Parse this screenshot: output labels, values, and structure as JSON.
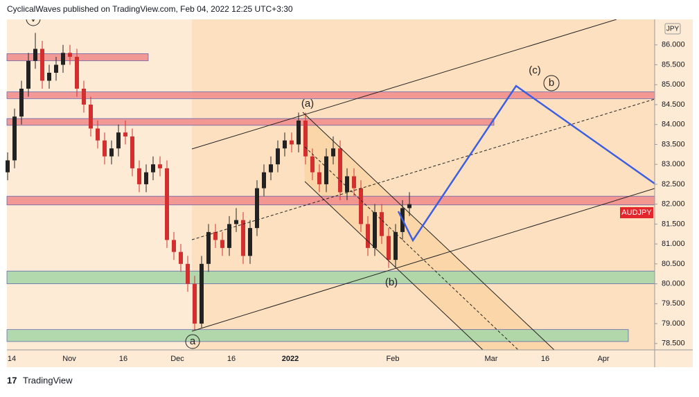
{
  "header": {
    "text": "CyclicalWaves published on TradingView.com, Feb 04, 2022 12:25 UTC+3:30"
  },
  "footer": {
    "brand": "TradingView"
  },
  "chart_data": {
    "type": "candlestick",
    "symbol": "AUDJPY",
    "currency": "JPY",
    "up_color": "#222222",
    "down_color": "#d32f2f",
    "ylim": [
      78.34,
      86.64
    ],
    "yticks": [
      {
        "value": 78.5,
        "label": "78.500"
      },
      {
        "value": 79,
        "label": "79.000"
      },
      {
        "value": 79.5,
        "label": "79.500"
      },
      {
        "value": 80,
        "label": "80.000"
      },
      {
        "value": 80.5,
        "label": "80.500"
      },
      {
        "value": 81,
        "label": "81.000"
      },
      {
        "value": 81.5,
        "label": "81.500"
      },
      {
        "value": 82,
        "label": "82.000"
      },
      {
        "value": 82.5,
        "label": "82.500"
      },
      {
        "value": 83,
        "label": "83.000"
      },
      {
        "value": 83.5,
        "label": "83.500"
      },
      {
        "value": 84,
        "label": "84.000"
      },
      {
        "value": 84.5,
        "label": "84.500"
      },
      {
        "value": 85,
        "label": "85.000"
      },
      {
        "value": 85.5,
        "label": "85.500"
      },
      {
        "value": 86,
        "label": "86.000"
      }
    ],
    "xtick_labels": [
      "14",
      "Nov",
      "16",
      "Dec",
      "16",
      "2022",
      "Feb",
      "Mar",
      "16",
      "Apr"
    ],
    "open": [
      82.8,
      83.1,
      84.2,
      84.9,
      85.6,
      85.9,
      85.1,
      85.3,
      85.5,
      85.8,
      85.7,
      84.9,
      84.5,
      83.9,
      83.6,
      83.2,
      83.4,
      83.8,
      83.7,
      82.9,
      82.5,
      82.8,
      83.0,
      82.9,
      81.1,
      80.8,
      80.5,
      80.0,
      79.0,
      80.5,
      81.3,
      81.1,
      80.9,
      81.5,
      81.6,
      80.7,
      81.4,
      82.4,
      82.8,
      83.0,
      83.4,
      83.6,
      83.5,
      84.1,
      83.2,
      82.8,
      82.5,
      83.2,
      83.4,
      82.3,
      82.7,
      82.4,
      81.5,
      80.9,
      81.8,
      81.2,
      80.6,
      81.3,
      81.9
    ],
    "high": [
      83.3,
      84.4,
      85.1,
      85.8,
      86.3,
      86.1,
      85.5,
      85.7,
      86.0,
      86.0,
      85.9,
      85.1,
      84.7,
      84.1,
      83.8,
      83.6,
      84.0,
      84.1,
      83.9,
      83.1,
      83.0,
      83.2,
      83.2,
      83.1,
      81.3,
      81.0,
      80.7,
      80.2,
      80.7,
      81.5,
      81.5,
      81.3,
      81.7,
      81.9,
      81.8,
      81.6,
      82.6,
      83.0,
      83.2,
      83.6,
      83.8,
      83.8,
      84.3,
      84.3,
      83.4,
      83.0,
      83.4,
      83.7,
      83.6,
      82.9,
      82.9,
      82.6,
      81.7,
      82.0,
      82.0,
      81.4,
      81.5,
      82.1,
      82.3
    ],
    "low": [
      82.6,
      82.9,
      84.0,
      84.7,
      85.4,
      84.9,
      84.9,
      85.1,
      85.3,
      85.5,
      84.7,
      84.3,
      83.7,
      83.4,
      83.0,
      83.0,
      83.2,
      83.5,
      82.7,
      82.3,
      82.3,
      82.6,
      82.7,
      80.9,
      80.6,
      80.3,
      79.8,
      78.85,
      78.9,
      80.3,
      80.9,
      80.7,
      80.7,
      81.3,
      80.5,
      80.5,
      81.2,
      82.2,
      82.6,
      82.8,
      83.2,
      83.3,
      83.3,
      83.0,
      82.6,
      82.3,
      82.3,
      83.0,
      82.1,
      82.1,
      82.2,
      81.3,
      80.7,
      80.7,
      81.0,
      80.4,
      80.4,
      81.1,
      81.7
    ],
    "close": [
      83.1,
      84.2,
      84.9,
      85.6,
      85.9,
      85.1,
      85.3,
      85.5,
      85.8,
      85.7,
      84.9,
      84.5,
      83.9,
      83.6,
      83.2,
      83.4,
      83.8,
      83.7,
      82.9,
      82.5,
      82.8,
      83.0,
      82.9,
      81.1,
      80.8,
      80.5,
      80.0,
      79.0,
      80.5,
      81.3,
      81.1,
      80.9,
      81.5,
      81.6,
      80.7,
      81.4,
      82.4,
      82.8,
      83.0,
      83.4,
      83.6,
      83.5,
      84.1,
      83.2,
      82.8,
      82.5,
      83.2,
      83.4,
      82.3,
      82.7,
      82.4,
      81.5,
      80.9,
      81.8,
      81.2,
      80.6,
      81.3,
      81.9,
      82.0
    ],
    "zones": [
      {
        "low": 85.6,
        "high": 85.78,
        "color": "#f28b8b"
      },
      {
        "low": 84.65,
        "high": 84.82,
        "color": "#f28b8b"
      },
      {
        "low": 83.98,
        "high": 84.15,
        "color": "#f28b8b"
      },
      {
        "low": 81.98,
        "high": 82.2,
        "color": "#f28b8b"
      },
      {
        "low": 80.0,
        "high": 80.32,
        "color": "#a5d6a7"
      },
      {
        "low": 78.55,
        "high": 78.85,
        "color": "#a5d6a7"
      }
    ],
    "annotations": [
      "(a)",
      "(b)",
      "(c)",
      "a",
      "b",
      "v"
    ]
  }
}
